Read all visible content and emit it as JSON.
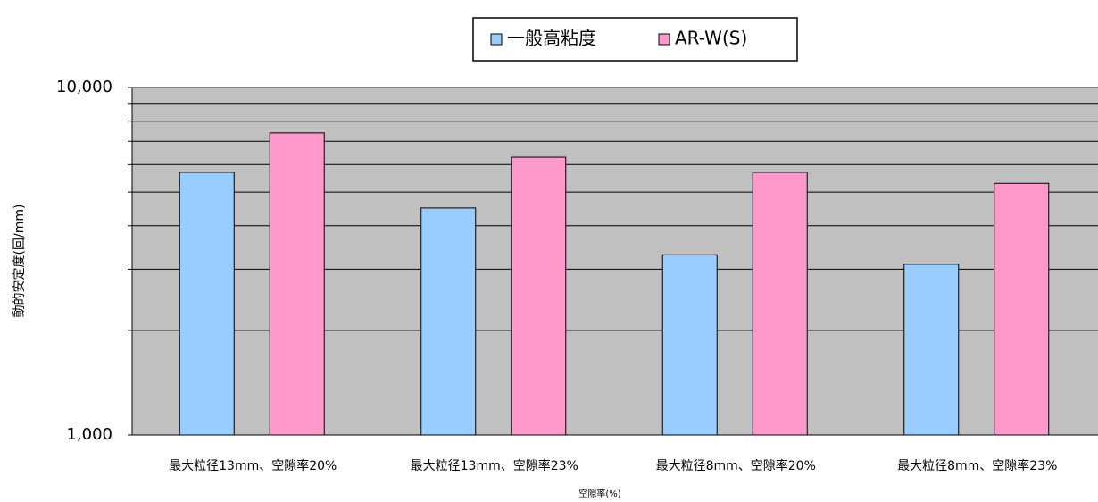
{
  "chart_data": {
    "type": "bar",
    "log": true,
    "y_label": "動的安定度(回/mm)",
    "x_label": "空隙率(%)",
    "categories": [
      "最大粒径13mm、空隙率20%",
      "最大粒径13mm、空隙率23%",
      "最大粒径8mm、空隙率20%",
      "最大粒径8mm、空隙率23%"
    ],
    "series": [
      {
        "name": "一般高粘度",
        "color": "#99ccff",
        "values": [
          5700,
          4500,
          3300,
          3100
        ]
      },
      {
        "name": "AR-W(S)",
        "color": "#ff99cc",
        "values": [
          7400,
          6300,
          5700,
          5300
        ]
      }
    ],
    "ylim": [
      1000,
      10000
    ],
    "yticks": [
      {
        "value": 1000,
        "label": "1,000"
      },
      {
        "value": 10000,
        "label": "10,000"
      }
    ],
    "minor_yticks": [
      2000,
      3000,
      4000,
      5000,
      6000,
      7000,
      8000,
      9000
    ],
    "grid": true,
    "legend": "top",
    "plot_background": "#c0c0c0"
  }
}
